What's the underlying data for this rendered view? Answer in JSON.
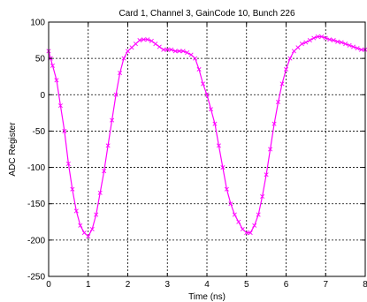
{
  "chart_data": {
    "type": "line",
    "title": "Card 1,  Channel 3,  GainCode 10,  Bunch 226",
    "xlabel": "Time (ns)",
    "ylabel": "ADC Register",
    "xlim": [
      0,
      8
    ],
    "ylim": [
      -250,
      100
    ],
    "xticks": [
      0,
      1,
      2,
      3,
      4,
      5,
      6,
      7,
      8
    ],
    "yticks": [
      -250,
      -200,
      -150,
      -100,
      -50,
      0,
      50,
      100
    ],
    "xtick_labels": [
      "0",
      "1",
      "2",
      "3",
      "4",
      "5",
      "6",
      "7",
      "8"
    ],
    "ytick_labels": [
      "-250",
      "-200",
      "-150",
      "-100",
      "-50",
      "0",
      "50",
      "100"
    ],
    "grid": true,
    "legend": "none",
    "series": [
      {
        "color": "#ff00ff",
        "marker": "x",
        "x": [
          0.0,
          0.05,
          0.1,
          0.2,
          0.3,
          0.4,
          0.5,
          0.6,
          0.7,
          0.8,
          0.9,
          1.0,
          1.1,
          1.2,
          1.3,
          1.4,
          1.5,
          1.6,
          1.7,
          1.8,
          1.9,
          2.0,
          2.1,
          2.2,
          2.3,
          2.4,
          2.5,
          2.6,
          2.7,
          2.8,
          2.9,
          3.0,
          3.1,
          3.2,
          3.3,
          3.4,
          3.5,
          3.6,
          3.7,
          3.8,
          3.9,
          4.0,
          4.1,
          4.2,
          4.3,
          4.4,
          4.5,
          4.6,
          4.7,
          4.8,
          4.9,
          5.0,
          5.1,
          5.2,
          5.3,
          5.4,
          5.5,
          5.6,
          5.7,
          5.8,
          5.9,
          6.0,
          6.1,
          6.2,
          6.3,
          6.4,
          6.5,
          6.6,
          6.7,
          6.8,
          6.9,
          7.0,
          7.1,
          7.2,
          7.3,
          7.4,
          7.5,
          7.6,
          7.7,
          7.8,
          7.9,
          8.0
        ],
        "y": [
          60,
          50,
          40,
          20,
          -15,
          -50,
          -95,
          -130,
          -160,
          -180,
          -190,
          -195,
          -185,
          -165,
          -135,
          -105,
          -70,
          -35,
          0,
          30,
          50,
          60,
          65,
          70,
          75,
          76,
          76,
          74,
          70,
          66,
          62,
          62,
          62,
          60,
          60,
          60,
          58,
          55,
          50,
          35,
          15,
          0,
          -20,
          -40,
          -70,
          -100,
          -130,
          -150,
          -165,
          -175,
          -185,
          -190,
          -190,
          -180,
          -165,
          -140,
          -110,
          -75,
          -40,
          -10,
          15,
          35,
          50,
          60,
          65,
          70,
          72,
          75,
          78,
          80,
          80,
          78,
          76,
          75,
          73,
          72,
          70,
          68,
          66,
          64,
          62,
          62
        ]
      }
    ]
  }
}
